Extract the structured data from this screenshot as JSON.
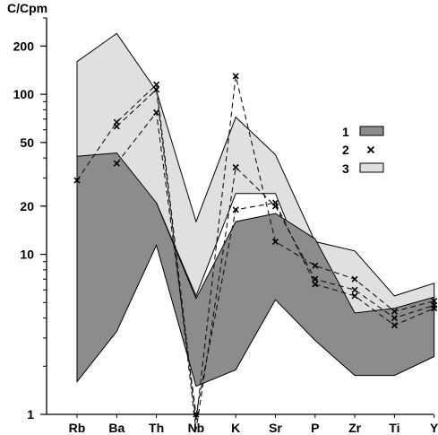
{
  "chart_data": {
    "type": "line",
    "title": "",
    "ylabel": "C/Cpm",
    "xlabel": "",
    "y_scale": "log",
    "ylim": [
      1,
      300
    ],
    "y_ticks": [
      1,
      10,
      20,
      50,
      100,
      200
    ],
    "y_tick_labels": [
      "1",
      "10",
      "20",
      "50",
      "100",
      "200"
    ],
    "categories": [
      "Rb",
      "Ba",
      "Th",
      "Nb",
      "K",
      "Sr",
      "P",
      "Zr",
      "Ti",
      "Y"
    ],
    "legend": [
      {
        "label": "1",
        "symbol": "dark-gray-box"
      },
      {
        "label": "2",
        "symbol": "x-marker"
      },
      {
        "label": "3",
        "symbol": "light-gray-box"
      }
    ],
    "field_3_light": {
      "upper": [
        160,
        240,
        105,
        16,
        72,
        42,
        12,
        10.5,
        5.5,
        6.6
      ],
      "lower": [
        30,
        15,
        21,
        5.5,
        24,
        24,
        5.8,
        4.3,
        4.3,
        4.6
      ]
    },
    "field_1_dark": {
      "upper": [
        41,
        43,
        21,
        5.3,
        16,
        18,
        12.5,
        4.3,
        4.6,
        5.4
      ],
      "lower": [
        1.6,
        3.3,
        11.4,
        1.5,
        1.9,
        5.2,
        2.9,
        1.75,
        1.75,
        2.3
      ]
    },
    "series": [
      {
        "values": [
          29,
          67,
          115,
          0.9,
          130,
          12,
          8.5,
          7,
          4.4,
          5.1
        ]
      },
      {
        "values": [
          null,
          63,
          107,
          0.8,
          35,
          20,
          7,
          6,
          4,
          4.8
        ]
      },
      {
        "values": [
          null,
          37,
          77,
          1.0,
          19,
          21,
          6.5,
          5.5,
          3.6,
          4.6
        ]
      }
    ],
    "colors": {
      "dark_field": "#8c8c8c",
      "light_field": "#e0e0e0",
      "outline": "#000000",
      "series_line": "#111111"
    },
    "grid": false
  }
}
